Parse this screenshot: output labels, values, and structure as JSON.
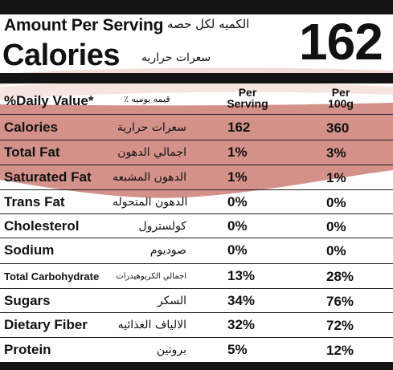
{
  "header": {
    "amount_per_serving": "Amount Per Serving",
    "amount_per_serving_ar": "الكميه لكل حصه",
    "calories_label": "Calories",
    "calories_label_ar": "سعرات حراريه",
    "calories_value": "162"
  },
  "table": {
    "daily_value_label": "%Daily Value*",
    "daily_value_label_ar": "٪ قيمه يوميه",
    "col_per_serving": "Per Serving",
    "col_per_100g": "Per 100g",
    "rows": [
      {
        "en": "Calories",
        "ar": "سعرات حرارية",
        "per_serving": "162",
        "per_100g": "360"
      },
      {
        "en": "Total Fat",
        "ar": "اجمالي الدهون",
        "per_serving": "1%",
        "per_100g": "3%"
      },
      {
        "en": "Saturated Fat",
        "ar": "الدهون المشبعه",
        "per_serving": "1%",
        "per_100g": "1%"
      },
      {
        "en": "Trans Fat",
        "ar": "الدهون المتحوله",
        "per_serving": "0%",
        "per_100g": "0%"
      },
      {
        "en": "Cholesterol",
        "ar": "كولسترول",
        "per_serving": "0%",
        "per_100g": "0%"
      },
      {
        "en": "Sodium",
        "ar": "صوديوم",
        "per_serving": "0%",
        "per_100g": "0%"
      },
      {
        "en": "Total Carbohydrate",
        "ar": "اجمالي الكربوهيدرات",
        "per_serving": "13%",
        "per_100g": "28%"
      },
      {
        "en": "Sugars",
        "ar": "السكر",
        "per_serving": "34%",
        "per_100g": "76%"
      },
      {
        "en": "Dietary Fiber",
        "ar": "الالياف الغذائيه",
        "per_serving": "32%",
        "per_100g": "72%"
      },
      {
        "en": "Protein",
        "ar": "بروتين",
        "per_serving": "5%",
        "per_100g": "12%"
      }
    ]
  },
  "colors": {
    "bar": "#141414",
    "swoosh_dark": "#d48f82",
    "swoosh_light": "#f2d9d4"
  }
}
